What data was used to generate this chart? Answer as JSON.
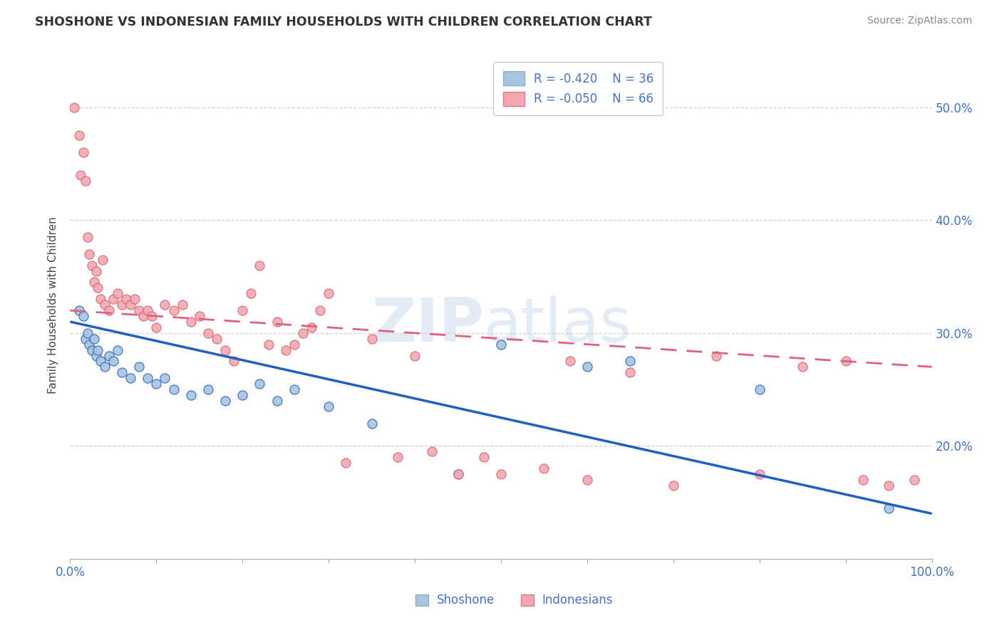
{
  "title": "SHOSHONE VS INDONESIAN FAMILY HOUSEHOLDS WITH CHILDREN CORRELATION CHART",
  "source": "Source: ZipAtlas.com",
  "ylabel": "Family Households with Children",
  "shoshone_R": -0.42,
  "shoshone_N": 36,
  "indonesian_R": -0.05,
  "indonesian_N": 66,
  "shoshone_color": "#a8c4e0",
  "indonesian_color": "#f4a7b0",
  "shoshone_line_color": "#2060c0",
  "indonesian_line_color": "#e06080",
  "xlim": [
    0,
    100
  ],
  "ylim": [
    10,
    55
  ],
  "xticks": [
    0,
    10,
    20,
    30,
    40,
    50,
    60,
    70,
    80,
    90,
    100
  ],
  "yticks": [
    20,
    30,
    40,
    50
  ],
  "shoshone_x": [
    1.0,
    1.5,
    1.8,
    2.0,
    2.2,
    2.5,
    2.8,
    3.0,
    3.2,
    3.5,
    4.0,
    4.5,
    5.0,
    5.5,
    6.0,
    7.0,
    8.0,
    9.0,
    10.0,
    11.0,
    12.0,
    14.0,
    16.0,
    18.0,
    20.0,
    22.0,
    24.0,
    26.0,
    30.0,
    35.0,
    45.0,
    50.0,
    60.0,
    65.0,
    80.0,
    95.0
  ],
  "shoshone_y": [
    32.0,
    31.5,
    29.5,
    30.0,
    29.0,
    28.5,
    29.5,
    28.0,
    28.5,
    27.5,
    27.0,
    28.0,
    27.5,
    28.5,
    26.5,
    26.0,
    27.0,
    26.0,
    25.5,
    26.0,
    25.0,
    24.5,
    25.0,
    24.0,
    24.5,
    25.5,
    24.0,
    25.0,
    23.5,
    22.0,
    17.5,
    29.0,
    27.0,
    27.5,
    25.0,
    14.5
  ],
  "indonesian_x": [
    0.5,
    1.0,
    1.2,
    1.5,
    1.8,
    2.0,
    2.2,
    2.5,
    2.8,
    3.0,
    3.2,
    3.5,
    3.8,
    4.0,
    4.5,
    5.0,
    5.5,
    6.0,
    6.5,
    7.0,
    7.5,
    8.0,
    8.5,
    9.0,
    9.5,
    10.0,
    11.0,
    12.0,
    13.0,
    14.0,
    15.0,
    16.0,
    17.0,
    18.0,
    19.0,
    20.0,
    21.0,
    22.0,
    23.0,
    24.0,
    25.0,
    26.0,
    27.0,
    28.0,
    29.0,
    30.0,
    32.0,
    35.0,
    38.0,
    40.0,
    42.0,
    45.0,
    48.0,
    50.0,
    55.0,
    58.0,
    60.0,
    65.0,
    70.0,
    75.0,
    80.0,
    85.0,
    90.0,
    92.0,
    95.0,
    98.0
  ],
  "indonesian_y": [
    50.0,
    47.5,
    44.0,
    46.0,
    43.5,
    38.5,
    37.0,
    36.0,
    34.5,
    35.5,
    34.0,
    33.0,
    36.5,
    32.5,
    32.0,
    33.0,
    33.5,
    32.5,
    33.0,
    32.5,
    33.0,
    32.0,
    31.5,
    32.0,
    31.5,
    30.5,
    32.5,
    32.0,
    32.5,
    31.0,
    31.5,
    30.0,
    29.5,
    28.5,
    27.5,
    32.0,
    33.5,
    36.0,
    29.0,
    31.0,
    28.5,
    29.0,
    30.0,
    30.5,
    32.0,
    33.5,
    18.5,
    29.5,
    19.0,
    28.0,
    19.5,
    17.5,
    19.0,
    17.5,
    18.0,
    27.5,
    17.0,
    26.5,
    16.5,
    28.0,
    17.5,
    27.0,
    27.5,
    17.0,
    16.5,
    17.0
  ]
}
